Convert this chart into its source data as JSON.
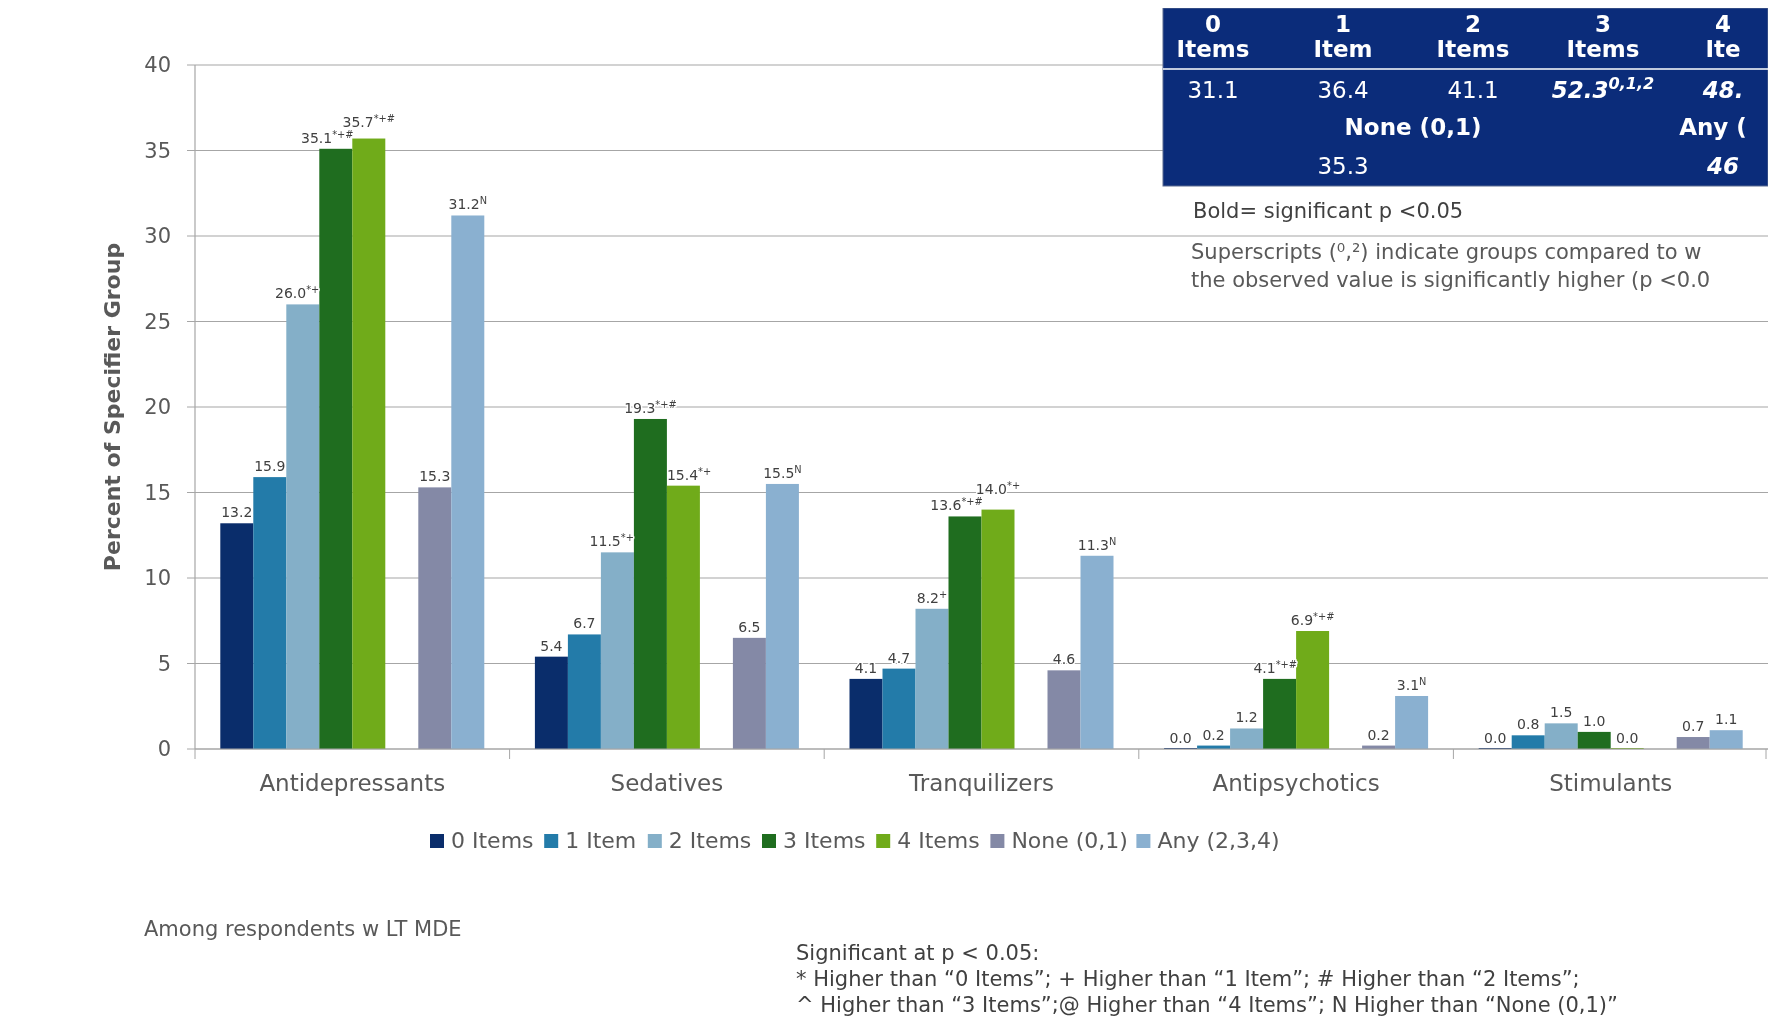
{
  "chart_data": {
    "type": "bar",
    "ylabel": "Percent of Specifier Group",
    "categories": [
      "Antidepressants",
      "Sedatives",
      "Tranquilizers",
      "Antipsychotics",
      "Stimulants"
    ],
    "series": [
      {
        "name": "0 Items",
        "color": "#0a2d6b",
        "values": [
          13.2,
          5.4,
          4.1,
          0.0,
          0.0
        ],
        "value_labels": [
          "13.2",
          "5.4",
          "4.1",
          "0.0",
          "0.0"
        ]
      },
      {
        "name": "1 Item",
        "color": "#237ba9",
        "values": [
          15.9,
          6.7,
          4.7,
          0.2,
          0.8
        ],
        "value_labels": [
          "15.9",
          "6.7",
          "4.7",
          "0.2",
          "0.8"
        ]
      },
      {
        "name": "2 Items",
        "color": "#84afc8",
        "values": [
          26.0,
          11.5,
          8.2,
          1.2,
          1.5
        ],
        "value_labels": [
          "26.0$^{*+}$",
          "11.5$^{*+}$",
          "8.2$^{+}$",
          "1.2",
          "1.5"
        ]
      },
      {
        "name": "3 Items",
        "color": "#1f6d1f",
        "values": [
          35.1,
          19.3,
          13.6,
          4.1,
          1.0
        ],
        "value_labels": [
          "35.1$^{*+#}$",
          "19.3$^{*+#}$",
          "13.6$^{*+#}$",
          "4.1$^{*+#}$",
          "1.0"
        ]
      },
      {
        "name": "4 Items",
        "color": "#70ab1a",
        "values": [
          35.7,
          15.4,
          14.0,
          6.9,
          0.0
        ],
        "value_labels": [
          "35.7$^{*+#}$",
          "15.4$^{*+}$",
          "14.0$^{*+}$",
          "6.9$^{*+#}$",
          "0.0"
        ]
      },
      {
        "name": "None (0,1)",
        "color": "#8489a6",
        "values": [
          15.3,
          6.5,
          4.6,
          0.2,
          0.7
        ],
        "value_labels": [
          "15.3",
          "6.5",
          "4.6",
          "0.2",
          "0.7"
        ]
      },
      {
        "name": "Any (2,3,4)",
        "color": "#8ab0d0",
        "values": [
          31.2,
          15.5,
          11.3,
          3.1,
          1.1
        ],
        "value_labels": [
          "31.2$^{N}$",
          "15.5$^{N}$",
          "11.3$^{N}$",
          "3.1$^{N}$",
          "1.1"
        ]
      }
    ],
    "ylim": [
      0,
      40
    ],
    "yticks": [
      0,
      5,
      10,
      15,
      20,
      25,
      30,
      35,
      40
    ],
    "grid": "y",
    "legend": "bottom",
    "annotations": [
      "0 Items",
      "1 Item",
      "2 Items",
      "3 Items",
      "4 Ite",
      "31.1",
      "36.4",
      "41.1",
      "52.3$^{0,1,2}$",
      "48.",
      "None (0,1)",
      "Any (",
      "35.3",
      "46",
      "Bold= significant p <0.05",
      "Superscripts (⁰,²) indicate groups compared to w",
      "the observed value is significantly higher (p <0.0",
      "Among respondents w LT MDE",
      "Significant at p < 0.05:",
      "* Higher than “0 Items”; + Higher than “1 Item”; # Higher than “2 Items”;",
      "^ Higher than “3 Items”;@ Higher than “4 Items”; N Higher than “None (0,1)”"
    ]
  }
}
